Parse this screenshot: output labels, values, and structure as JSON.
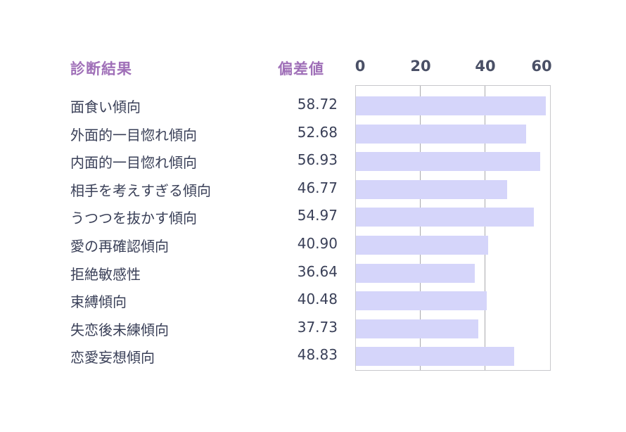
{
  "header": {
    "label_col": "診断結果",
    "score_col": "偏差値"
  },
  "axis": {
    "ticks": [
      "0",
      "20",
      "40",
      "60"
    ],
    "tick_values": [
      0,
      20,
      40,
      60
    ],
    "min": 0,
    "max": 60
  },
  "colors": {
    "header": "#a070b8",
    "bar": "#d5d5fa",
    "text": "#3a4058",
    "grid": "#a9a9ad"
  },
  "rows": [
    {
      "label": "面食い傾向",
      "value": "58.72"
    },
    {
      "label": "外面的一目惚れ傾向",
      "value": "52.68"
    },
    {
      "label": "内面的一目惚れ傾向",
      "value": "56.93"
    },
    {
      "label": "相手を考えすぎる傾向",
      "value": "46.77"
    },
    {
      "label": "うつつを抜かす傾向",
      "value": "54.97"
    },
    {
      "label": "愛の再確認傾向",
      "value": "40.90"
    },
    {
      "label": "拒絶敏感性",
      "value": "36.64"
    },
    {
      "label": "束縛傾向",
      "value": "40.48"
    },
    {
      "label": "失恋後未練傾向",
      "value": "37.73"
    },
    {
      "label": "恋愛妄想傾向",
      "value": "48.83"
    }
  ],
  "chart_data": {
    "type": "bar",
    "orientation": "horizontal",
    "title": "",
    "xlabel": "偏差値",
    "ylabel": "診断結果",
    "categories": [
      "面食い傾向",
      "外面的一目惚れ傾向",
      "内面的一目惚れ傾向",
      "相手を考えすぎる傾向",
      "うつつを抜かす傾向",
      "愛の再確認傾向",
      "拒絶敏感性",
      "束縛傾向",
      "失恋後未練傾向",
      "恋愛妄想傾向"
    ],
    "values": [
      58.72,
      52.68,
      56.93,
      46.77,
      54.97,
      40.9,
      36.64,
      40.48,
      37.73,
      48.83
    ],
    "xlim": [
      0,
      60
    ],
    "xticks": [
      0,
      20,
      40,
      60
    ],
    "grid": true,
    "legend": false
  }
}
